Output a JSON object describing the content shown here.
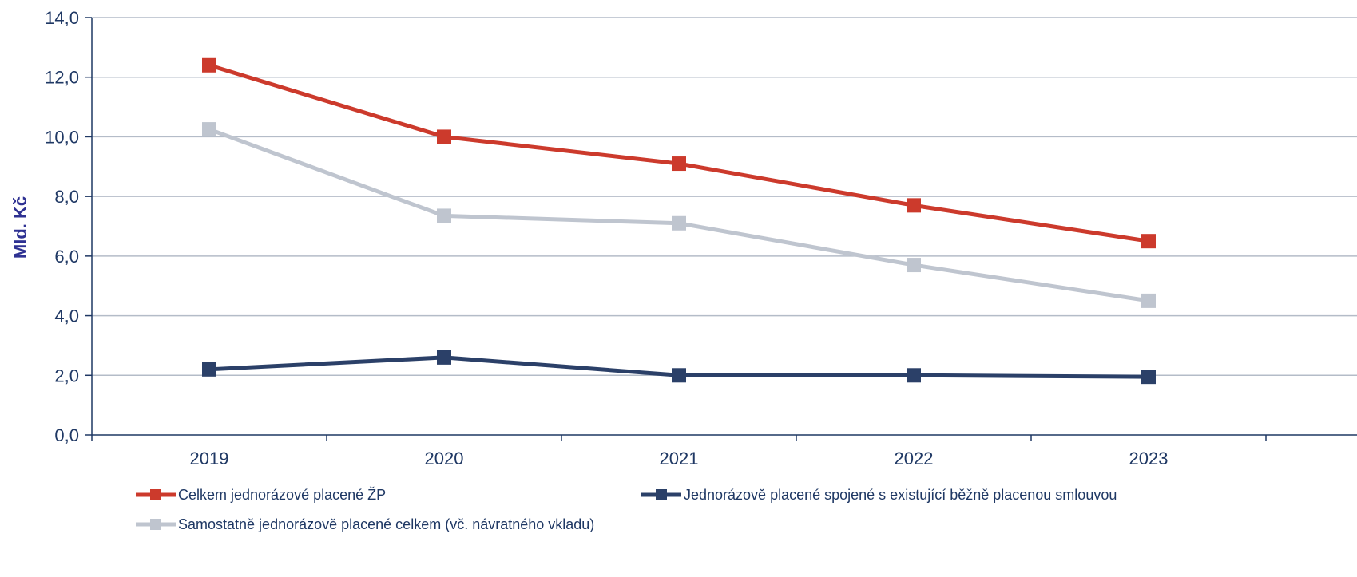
{
  "chart_data": {
    "type": "line",
    "title": "",
    "xlabel": "",
    "ylabel": "Mld. Kč",
    "x": [
      "2019",
      "2020",
      "2021",
      "2022",
      "2023"
    ],
    "ylim": [
      0,
      14
    ],
    "yticks": [
      0,
      2,
      4,
      6,
      8,
      10,
      12,
      14
    ],
    "ytick_labels": [
      "0,0",
      "2,0",
      "4,0",
      "6,0",
      "8,0",
      "10,0",
      "12,0",
      "14,0"
    ],
    "grid": true,
    "legend_position": "bottom",
    "series": [
      {
        "name": "Celkem jednorázové placené ŽP",
        "color": "#cc3a2c",
        "values": [
          12.4,
          10.0,
          9.1,
          7.7,
          6.5
        ]
      },
      {
        "name": "Jednorázově placené spojené s existující běžně placenou smlouvou",
        "color": "#2b4068",
        "values": [
          2.2,
          2.6,
          2.0,
          2.0,
          1.95
        ]
      },
      {
        "name": "Samostatně jednorázově placené celkem (vč. návratného vkladu)",
        "color": "#bfc5cf",
        "values": [
          10.25,
          7.35,
          7.1,
          5.7,
          4.5
        ]
      }
    ]
  }
}
